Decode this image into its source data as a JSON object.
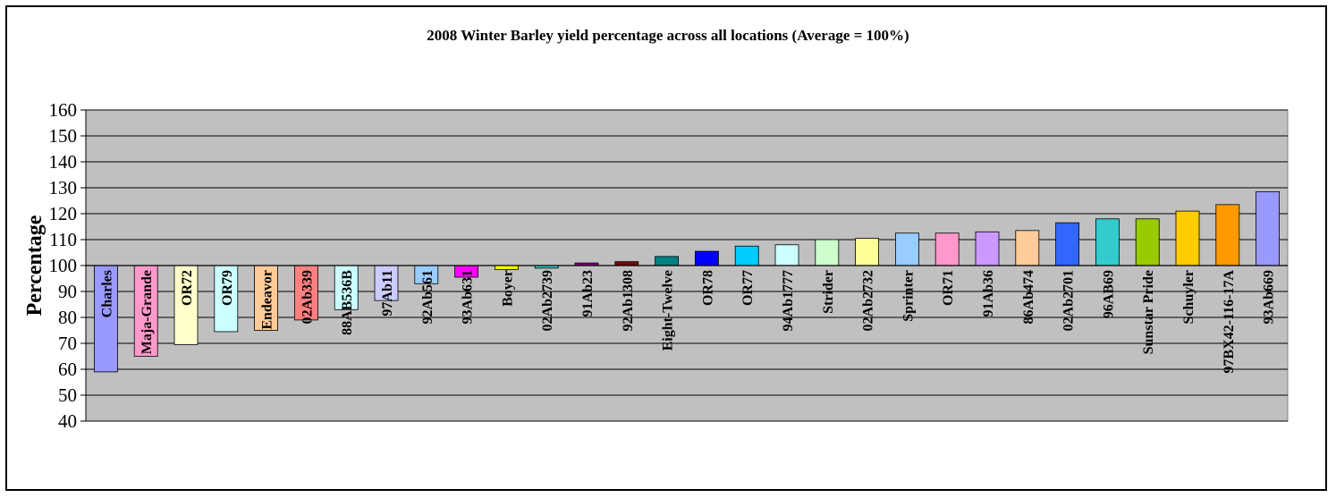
{
  "chart_data": {
    "type": "bar",
    "title": "2008 Winter Barley yield percentage across all locations (Average = 100%)",
    "xlabel": "",
    "ylabel": "Percentage",
    "ylim": [
      40,
      160
    ],
    "yticks": [
      "160",
      "150",
      "140",
      "130",
      "120",
      "110",
      "100",
      "90",
      "80",
      "70",
      "60",
      "50",
      "40"
    ],
    "baseline": 100,
    "grid": true,
    "plot_background": "#c0c0c0",
    "categories": [
      "Charles",
      "Maja-Grande",
      "OR72",
      "OR79",
      "Endeavor",
      "02Ab339",
      "88AB536B",
      "97Ab11",
      "92Ab561",
      "93Ab631",
      "Boyer",
      "02Ab2739",
      "91Ab23",
      "92Ab1308",
      "Eight-Twelve",
      "OR78",
      "OR77",
      "94Ab1777",
      "Strider",
      "02Ab2732",
      "Sprinter",
      "OR71",
      "91Ab36",
      "86Ab474",
      "02Ab2701",
      "96AB69",
      "Sunstar Pride",
      "Schuyler",
      "97BX42-116-17A",
      "93Ab669"
    ],
    "values": [
      59,
      65,
      69.5,
      74.5,
      75,
      79,
      83,
      86.5,
      93,
      95.5,
      98.5,
      99,
      101,
      101.5,
      103.5,
      105.5,
      107.5,
      108,
      110,
      110.5,
      112.5,
      112.5,
      113,
      113.5,
      116.5,
      118,
      118,
      121,
      123.5,
      128.5
    ],
    "colors": [
      "#9999ff",
      "#ff99cc",
      "#ffffcc",
      "#ccffff",
      "#ffcc99",
      "#ff8080",
      "#ccffff",
      "#ccccff",
      "#99ccff",
      "#ff00ff",
      "#ffff00",
      "#33cccc",
      "#800080",
      "#800000",
      "#008080",
      "#0000ff",
      "#00ccff",
      "#ccffff",
      "#ccffcc",
      "#ffff99",
      "#99ccff",
      "#ff99cc",
      "#cc99ff",
      "#ffcc99",
      "#3366ff",
      "#33cccc",
      "#99cc00",
      "#ffcc00",
      "#ff9900",
      "#9999ff"
    ]
  }
}
